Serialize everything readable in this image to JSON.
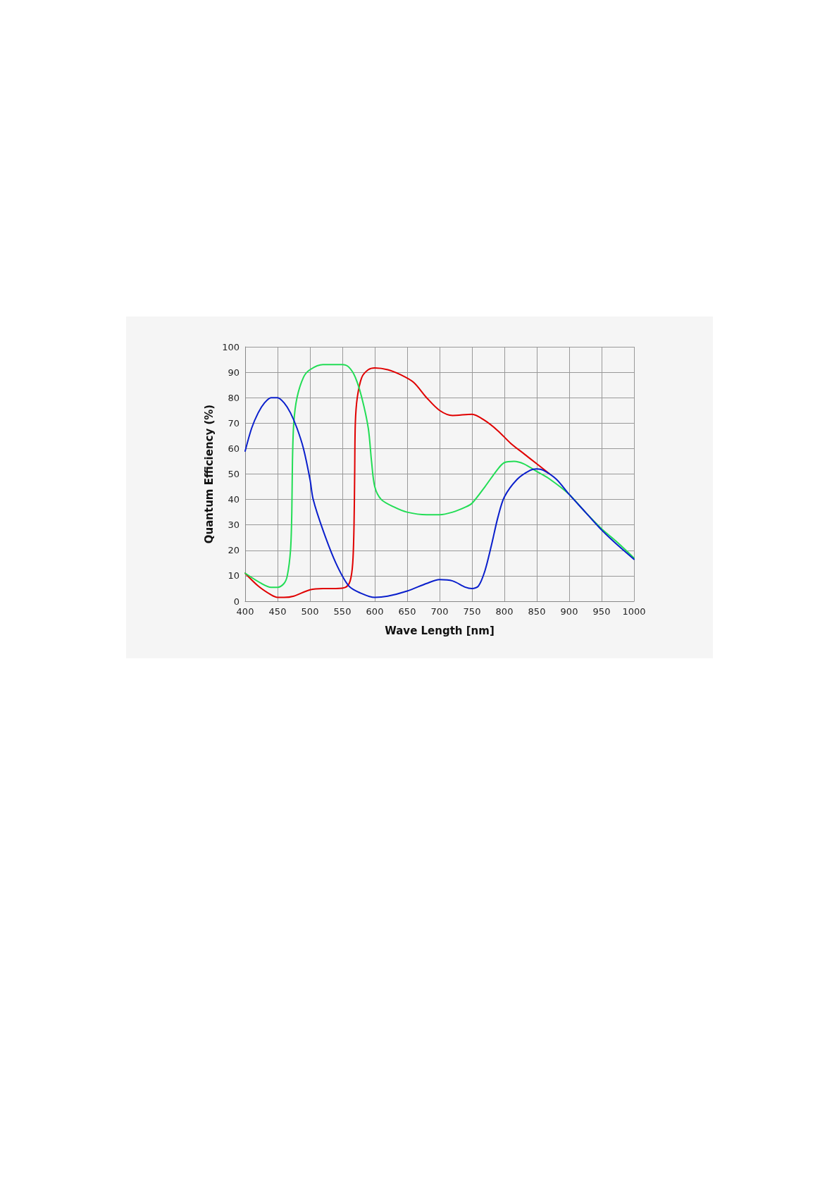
{
  "chart_data": {
    "type": "line",
    "xlabel": "Wave Length [nm]",
    "ylabel": "Quantum Efficiency (%)",
    "xlim": [
      400,
      1000
    ],
    "xticks": [
      400,
      450,
      500,
      550,
      600,
      650,
      700,
      750,
      800,
      850,
      900,
      950,
      1000
    ],
    "ylim": [
      0,
      100
    ],
    "yticks": [
      0,
      10,
      20,
      30,
      40,
      50,
      60,
      70,
      80,
      90,
      100
    ],
    "grid": true,
    "marker": "none",
    "line_style": "solid",
    "series": [
      {
        "color": "#e00000",
        "x": [
          400,
          420,
          440,
          450,
          460,
          475,
          500,
          520,
          540,
          555,
          562,
          566,
          568,
          569,
          570,
          573,
          580,
          590,
          600,
          620,
          640,
          660,
          680,
          700,
          720,
          750,
          770,
          790,
          810,
          830,
          850,
          870
        ],
        "values": [
          11,
          6,
          2.5,
          1.5,
          1.5,
          2,
          4.5,
          5,
          5,
          5.5,
          8,
          15,
          30,
          50,
          70,
          80,
          88,
          91,
          91.7,
          91,
          89,
          86,
          80,
          75,
          73,
          73.5,
          71,
          67,
          62,
          58,
          54,
          50
        ]
      },
      {
        "color": "#22dd55",
        "x": [
          400,
          425,
          440,
          450,
          460,
          465,
          470,
          472,
          473,
          475,
          480,
          490,
          500,
          520,
          550,
          560,
          570,
          580,
          590,
          595,
          600,
          610,
          630,
          650,
          680,
          700,
          720,
          740,
          750,
          770,
          790,
          800,
          815,
          830,
          850,
          870,
          900,
          925,
          950,
          975,
          1000
        ],
        "values": [
          11,
          7,
          5.5,
          5.5,
          7,
          10,
          20,
          35,
          55,
          70,
          80,
          88,
          91,
          93,
          93,
          92,
          88,
          80,
          68,
          55,
          45,
          40,
          37,
          35,
          34,
          34,
          35,
          37,
          38.5,
          45,
          52,
          54.5,
          55,
          54,
          51,
          48,
          42,
          35,
          28.5,
          23,
          17
        ]
      },
      {
        "color": "#0a1fcc",
        "x": [
          400,
          410,
          420,
          430,
          440,
          450,
          460,
          470,
          480,
          490,
          500,
          505,
          520,
          540,
          560,
          580,
          600,
          620,
          650,
          680,
          700,
          720,
          740,
          750,
          760,
          770,
          780,
          790,
          800,
          820,
          840,
          850,
          860,
          880,
          900,
          925,
          950,
          975,
          1000
        ],
        "values": [
          59,
          68,
          74,
          78,
          80,
          80,
          78,
          74,
          68,
          60,
          48,
          40,
          28,
          15,
          6,
          3,
          1.5,
          2,
          4,
          7,
          8.5,
          8,
          5.5,
          5,
          6,
          12,
          22,
          33,
          41,
          48,
          51.5,
          52,
          51.5,
          48,
          42,
          35,
          28,
          22,
          16.5
        ]
      }
    ]
  }
}
